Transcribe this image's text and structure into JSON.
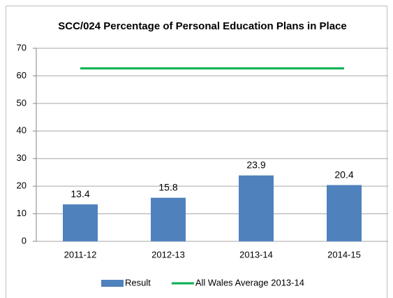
{
  "chart_data": {
    "type": "bar",
    "title": "SCC/024 Percentage of Personal Education Plans in Place",
    "categories": [
      "2011-12",
      "2012-13",
      "2013-14",
      "2014-15"
    ],
    "series": [
      {
        "name": "Result",
        "type": "bar",
        "color": "#4f81bd",
        "values": [
          13.4,
          15.8,
          23.9,
          20.4
        ]
      },
      {
        "name": "All Wales Average 2013-14",
        "type": "line",
        "color": "#00b050",
        "values": [
          62.7,
          62.7,
          62.7,
          62.7
        ]
      }
    ],
    "ylim": [
      0,
      70
    ],
    "yticks": [
      0,
      10,
      20,
      30,
      40,
      50,
      60,
      70
    ],
    "grid": true,
    "legend": "bottom"
  }
}
